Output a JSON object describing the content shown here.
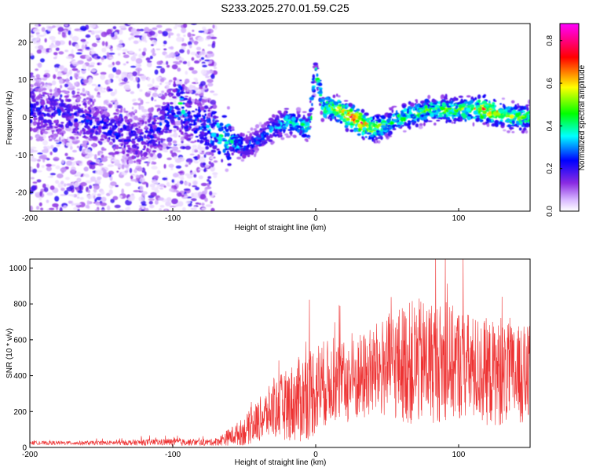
{
  "title": "S233.2025.270.01.59.C25",
  "chart_data": [
    {
      "type": "heatmap",
      "title": "",
      "xlabel": "Height of straight line (km)",
      "ylabel": "Frequency (Hz)",
      "xlim": [
        -200,
        150
      ],
      "ylim": [
        -25,
        25
      ],
      "xticks": [
        -200,
        -100,
        0,
        100
      ],
      "xtick_labels": [
        "-200",
        "-100",
        "0",
        "100"
      ],
      "yticks": [
        -20,
        -10,
        0,
        10,
        20
      ],
      "ytick_labels": [
        "-20",
        "-10",
        "0",
        "10",
        "20"
      ],
      "colorbar": {
        "label": "Normalized spectral amplitude",
        "range": [
          0,
          0.88
        ],
        "ticks": [
          0.0,
          0.2,
          0.4,
          0.6,
          0.8
        ],
        "tick_labels": [
          "0.0",
          "0.2",
          "0.4",
          "0.6",
          "0.8"
        ],
        "colormap": [
          "#ffffff",
          "#d8b8ff",
          "#8a2be2",
          "#0000ff",
          "#00ffff",
          "#00ff00",
          "#ffff00",
          "#ff0000",
          "#ff00ff"
        ]
      },
      "ridge": {
        "x": [
          -200,
          -180,
          -160,
          -140,
          -120,
          -110,
          -100,
          -95,
          -90,
          -80,
          -70,
          -60,
          -50,
          -40,
          -30,
          -20,
          -10,
          -5,
          0,
          5,
          10,
          20,
          30,
          40,
          50,
          60,
          70,
          80,
          90,
          100,
          110,
          120,
          130,
          140,
          150
        ],
        "freq": [
          2,
          1,
          -1,
          -4,
          -6,
          -3,
          2,
          4,
          0,
          -2,
          -4,
          -6,
          -8,
          -6,
          -3,
          -1,
          -2,
          -3,
          13,
          2,
          3,
          1,
          -1,
          -3,
          -2,
          0,
          1,
          2,
          2,
          2,
          2,
          2,
          1,
          0,
          0
        ],
        "amplitude": [
          0.25,
          0.25,
          0.25,
          0.25,
          0.25,
          0.25,
          0.3,
          0.45,
          0.3,
          0.3,
          0.4,
          0.45,
          0.35,
          0.3,
          0.35,
          0.4,
          0.45,
          0.45,
          0.4,
          0.5,
          0.55,
          0.7,
          0.85,
          0.6,
          0.45,
          0.5,
          0.5,
          0.5,
          0.55,
          0.5,
          0.65,
          0.75,
          0.6,
          0.55,
          0.5
        ]
      }
    },
    {
      "type": "line",
      "title": "",
      "xlabel": "Height of straight line (km)",
      "ylabel": "SNR (10 * v/v)",
      "xlim": [
        -200,
        150
      ],
      "ylim": [
        0,
        1050
      ],
      "xticks": [
        -200,
        -100,
        0,
        100
      ],
      "xtick_labels": [
        "-200",
        "-100",
        "0",
        "100"
      ],
      "yticks": [
        0,
        200,
        400,
        600,
        800,
        1000
      ],
      "ytick_labels": [
        "0",
        "200",
        "400",
        "600",
        "800",
        "1000"
      ],
      "color": "#ee3333",
      "envelope": {
        "x": [
          -200,
          -150,
          -100,
          -80,
          -70,
          -60,
          -50,
          -40,
          -30,
          -20,
          -10,
          0,
          10,
          20,
          30,
          40,
          50,
          60,
          70,
          80,
          90,
          100,
          110,
          120,
          130,
          140,
          150
        ],
        "mean": [
          25,
          25,
          30,
          28,
          30,
          60,
          90,
          150,
          210,
          240,
          270,
          330,
          370,
          360,
          380,
          420,
          450,
          470,
          470,
          480,
          470,
          470,
          440,
          420,
          410,
          400,
          400
        ],
        "spread": [
          10,
          12,
          20,
          18,
          20,
          50,
          80,
          120,
          160,
          200,
          250,
          270,
          230,
          230,
          250,
          260,
          290,
          330,
          360,
          350,
          330,
          320,
          300,
          300,
          290,
          280,
          280
        ]
      }
    }
  ]
}
